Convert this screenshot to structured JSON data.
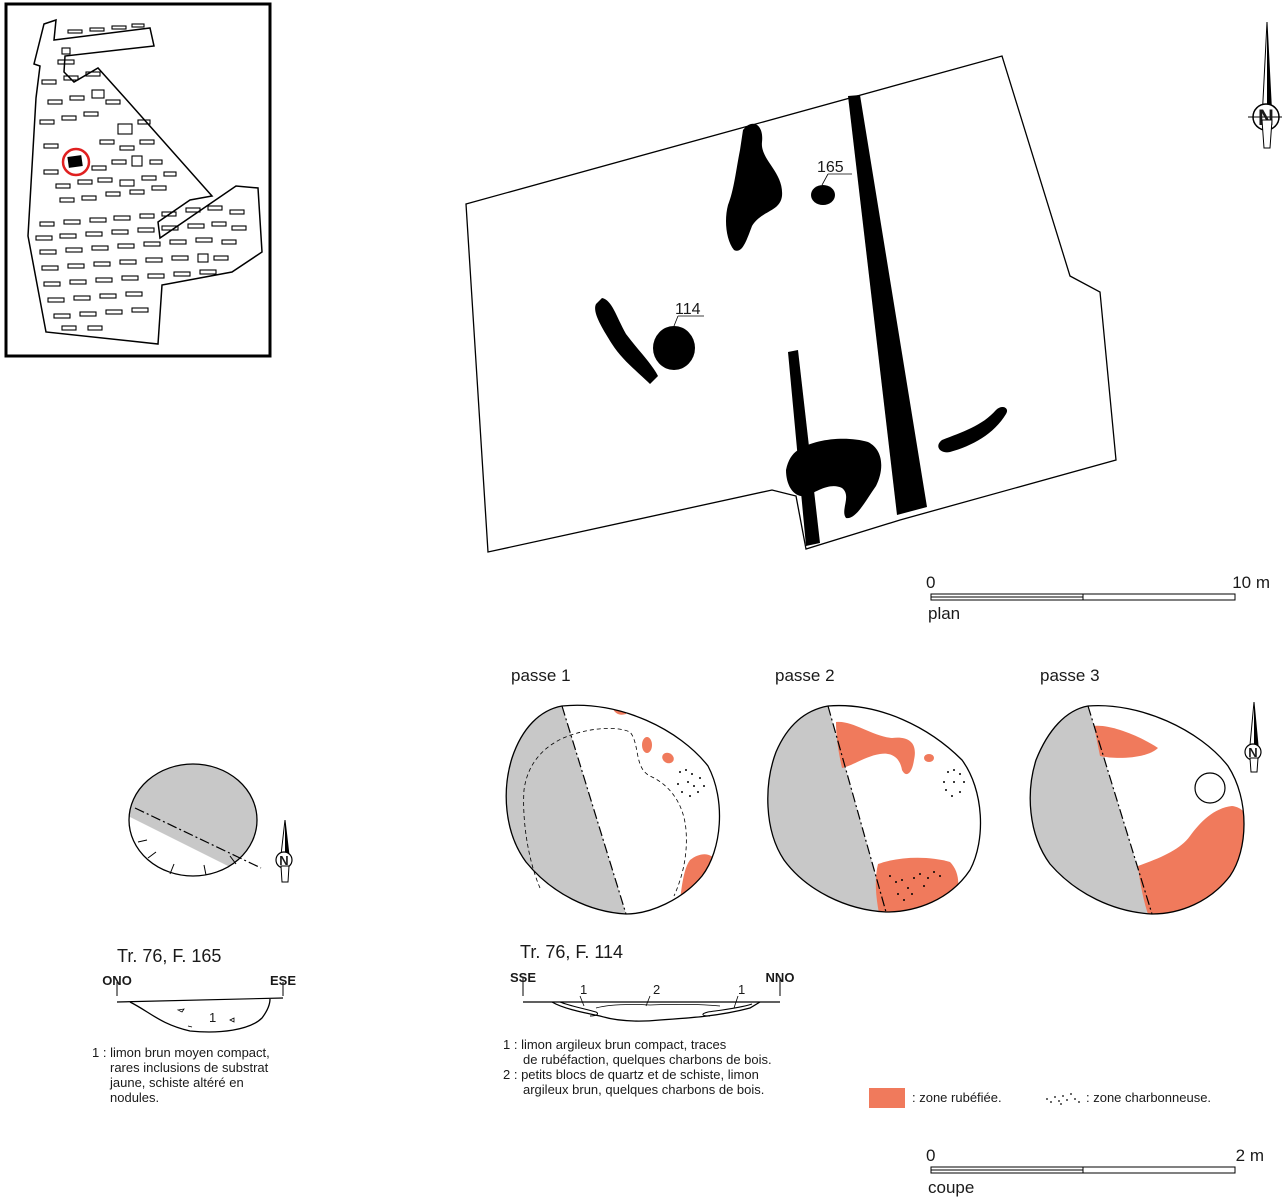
{
  "plan": {
    "label_165": "165",
    "label_114": "114",
    "scale": {
      "start": "0",
      "end": "10 m",
      "caption": "plan"
    }
  },
  "passes": {
    "p1": "passe 1",
    "p2": "passe 2",
    "p3": "passe 3"
  },
  "f165": {
    "title": "Tr. 76, F. 165",
    "left": "ONO",
    "right": "ESE",
    "layer": "1",
    "legend": [
      "1 : limon brun moyen compact,",
      "rares inclusions de substrat",
      "jaune, schiste altéré en",
      "nodules."
    ]
  },
  "f114": {
    "title": "Tr. 76, F. 114",
    "left": "SSE",
    "right": "NNO",
    "layers": [
      "1",
      "2",
      "1"
    ],
    "legend": [
      "1 : limon argileux brun compact, traces",
      "de rubéfaction, quelques charbons de bois.",
      "2 : petits blocs de quartz et de schiste, limon",
      "argileux brun, quelques charbons de bois."
    ]
  },
  "legend": {
    "rubefiee": ": zone rubéfiée.",
    "charbonneuse": ": zone charbonneuse."
  },
  "coupe_scale": {
    "start": "0",
    "end": "2 m",
    "caption": "coupe"
  },
  "north": "N",
  "colors": {
    "rubefiee": "#f07a5c",
    "gray": "#c8c8c8",
    "ink": "#000000",
    "marker": "#e02020"
  }
}
